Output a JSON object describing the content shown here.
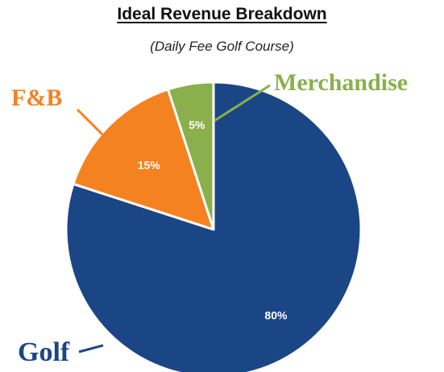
{
  "chart_data": {
    "type": "pie",
    "title": "Ideal Revenue Breakdown",
    "subtitle": "(Daily Fee Golf Course)",
    "categories": [
      "Golf",
      "F&B",
      "Merchandise"
    ],
    "values": [
      80,
      15,
      5
    ],
    "value_labels": [
      "80%",
      "15%",
      "5%"
    ],
    "colors": [
      "#1b4686",
      "#f58220",
      "#8ab04b"
    ],
    "start_angle_deg": 0,
    "direction": "clockwise",
    "legend": "callouts"
  }
}
